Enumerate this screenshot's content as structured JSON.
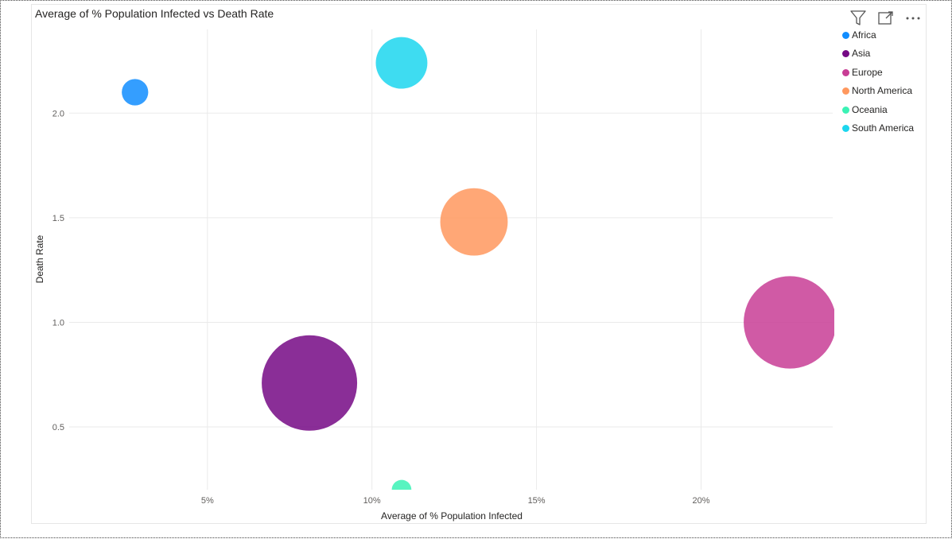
{
  "visual": {
    "title": "Average of % Population Infected vs Death Rate"
  },
  "header_icons": [
    {
      "name": "filter-icon"
    },
    {
      "name": "focus-mode-icon"
    },
    {
      "name": "more-options-icon"
    }
  ],
  "chart_data": {
    "type": "scatter",
    "title": "Average of % Population Infected vs Death Rate",
    "xlabel": "Average of % Population Infected",
    "ylabel": "Death Rate",
    "xlim": [
      0.8,
      24.0
    ],
    "ylim": [
      0.2,
      2.4
    ],
    "x_ticks": [
      {
        "value": 5,
        "label": "5%"
      },
      {
        "value": 10,
        "label": "10%"
      },
      {
        "value": 15,
        "label": "15%"
      },
      {
        "value": 20,
        "label": "20%"
      }
    ],
    "y_ticks": [
      {
        "value": 0.5,
        "label": "0.5"
      },
      {
        "value": 1.0,
        "label": "1.0"
      },
      {
        "value": 1.5,
        "label": "1.5"
      },
      {
        "value": 2.0,
        "label": "2.0"
      }
    ],
    "grid": true,
    "legend_position": "top-right",
    "series": [
      {
        "name": "Africa",
        "x": 2.8,
        "y": 2.1,
        "size": 1.0,
        "color": "#118DFF"
      },
      {
        "name": "Asia",
        "x": 8.1,
        "y": 0.71,
        "size": 13.0,
        "color": "#750985"
      },
      {
        "name": "Europe",
        "x": 22.7,
        "y": 1.0,
        "size": 12.2,
        "color": "#C83D95"
      },
      {
        "name": "North America",
        "x": 13.1,
        "y": 1.48,
        "size": 6.5,
        "color": "#FF985E"
      },
      {
        "name": "Oceania",
        "x": 10.9,
        "y": 0.2,
        "size": 0.55,
        "color": "#3BF2B5"
      },
      {
        "name": "South America",
        "x": 10.9,
        "y": 2.24,
        "size": 3.8,
        "color": "#1CD6EE"
      }
    ]
  }
}
